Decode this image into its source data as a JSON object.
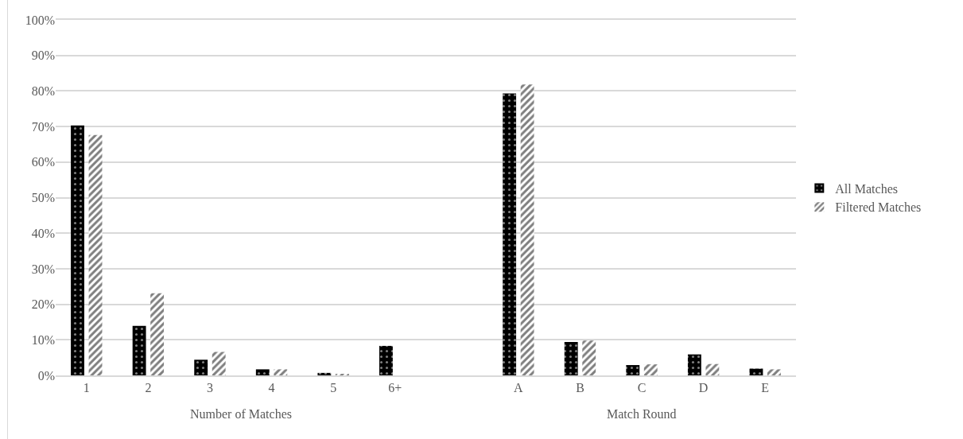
{
  "chart_data": {
    "type": "bar",
    "categories": [
      "1",
      "2",
      "3",
      "4",
      "5",
      "6+",
      null,
      "A",
      "B",
      "C",
      "D",
      "E"
    ],
    "series": [
      {
        "name": "All Matches",
        "color": "#000000",
        "values": [
          70.3,
          13.9,
          4.4,
          1.7,
          0.7,
          8.3,
          null,
          79.3,
          9.4,
          2.9,
          5.9,
          1.9
        ]
      },
      {
        "name": "Filtered Matches",
        "color": "#000000",
        "values": [
          67.6,
          23.1,
          6.6,
          1.7,
          0.4,
          null,
          null,
          81.8,
          9.8,
          3.1,
          3.2,
          1.7
        ]
      }
    ],
    "annotations": [
      "Number of Matches",
      "Match Round"
    ],
    "ylim": [
      0,
      100
    ],
    "yticks": [
      {
        "value": 0,
        "label": "0%"
      },
      {
        "value": 10,
        "label": "10%"
      },
      {
        "value": 20,
        "label": "20%"
      },
      {
        "value": 30,
        "label": "30%"
      },
      {
        "value": 40,
        "label": "40%"
      },
      {
        "value": 50,
        "label": "50%"
      },
      {
        "value": 60,
        "label": "60%"
      },
      {
        "value": 70,
        "label": "70%"
      },
      {
        "value": 80,
        "label": "80%"
      },
      {
        "value": 90,
        "label": "90%"
      },
      {
        "value": 100,
        "label": "100%"
      }
    ],
    "grid": "y",
    "legend": "right"
  }
}
